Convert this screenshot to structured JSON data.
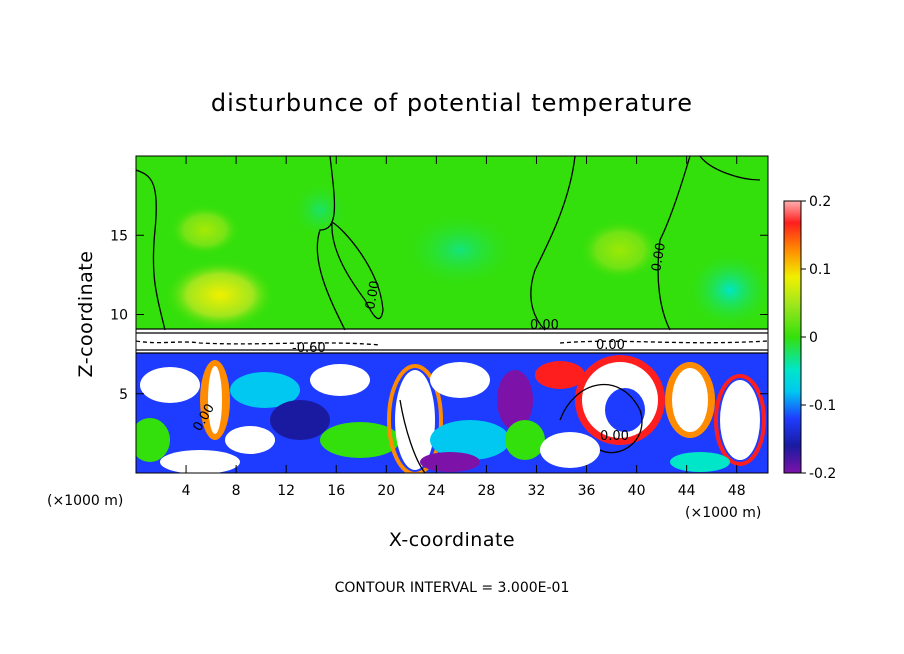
{
  "chart_data": {
    "type": "heatmap",
    "title": "disturbunce of potential temperature",
    "xlabel": "X-coordinate",
    "ylabel": "Z-coordinate",
    "x_unit_left": "(×1000 m)",
    "x_unit_right": "(×1000 m)",
    "xlim": [
      0,
      50.5
    ],
    "ylim": [
      0,
      20
    ],
    "x_ticks": [
      4,
      8,
      12,
      16,
      20,
      24,
      28,
      32,
      36,
      40,
      44,
      48
    ],
    "y_ticks": [
      5,
      10,
      15
    ],
    "colorbar": {
      "ticks": [
        "0.2",
        "0.1",
        "0",
        "-0.1",
        "-0.2"
      ],
      "tick_values": [
        0.2,
        0.1,
        0,
        -0.1,
        -0.2
      ],
      "range": [
        -0.2,
        0.2
      ]
    },
    "contour_labels": [
      "0.00",
      "-0.60",
      "0.00",
      "0.00",
      "0.00",
      "0.00",
      "0.00"
    ],
    "footer": "CONTOUR INTERVAL = 3.000E-01",
    "regions": {
      "upper_layer": {
        "z_range": [
          9,
          20
        ],
        "description_value": 0.0
      },
      "inversion_band": {
        "z_range": [
          7.5,
          9
        ]
      },
      "lower_layer": {
        "z_range": [
          0,
          7.5
        ]
      }
    },
    "colors": {
      "purple": "#7d12a8",
      "navy": "#1a1aa0",
      "blue": "#1e3cff",
      "cyan": "#00c8f0",
      "aqua": "#00e6c8",
      "green": "#34e00b",
      "lime": "#a0e61e",
      "yellow": "#f0f000",
      "orange": "#ff8c00",
      "red": "#ff1e1e",
      "pink": "#ff9a9a"
    }
  }
}
